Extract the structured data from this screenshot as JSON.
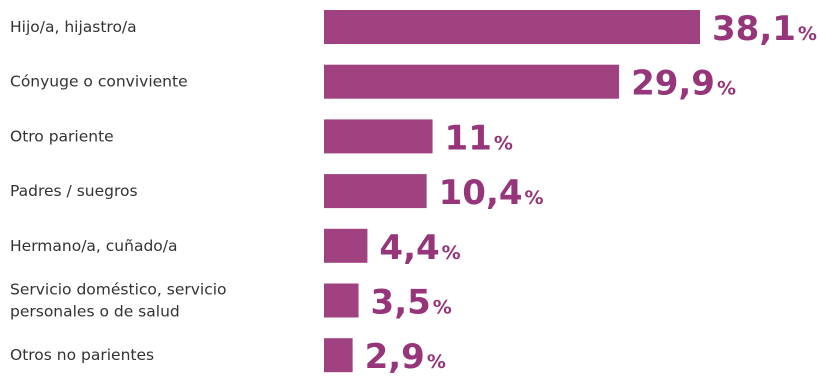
{
  "chart_data": {
    "type": "bar",
    "orientation": "horizontal",
    "categories": [
      [
        "Hijo/a, hijastro/a"
      ],
      [
        "Cónyuge o conviviente"
      ],
      [
        "Otro pariente"
      ],
      [
        "Padres / suegros"
      ],
      [
        "Hermano/a, cuñado/a"
      ],
      [
        "Servicio doméstico, servicio",
        "personales o de salud"
      ],
      [
        "Otros no parientes"
      ]
    ],
    "values": [
      38.1,
      29.9,
      11,
      10.4,
      4.4,
      3.5,
      2.9
    ],
    "value_labels": [
      "38,1",
      "29,9",
      "11",
      "10,4",
      "4,4",
      "3,5",
      "2,9"
    ],
    "unit_label": "%",
    "xlim": [
      0,
      38.1
    ],
    "grid": false,
    "colors": {
      "bar": "#a0427f",
      "value_text": "#96357a",
      "label_text": "#333333"
    }
  }
}
